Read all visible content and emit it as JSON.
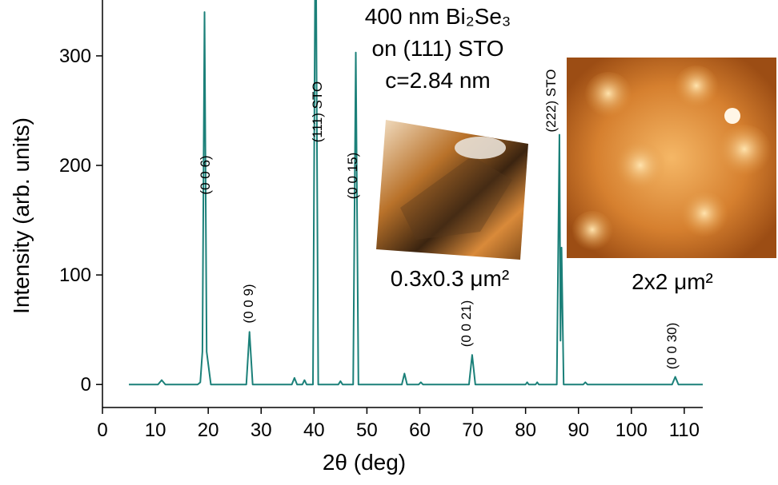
{
  "chart_data": {
    "type": "line",
    "title_lines": [
      "400 nm Bi₂Se₃",
      "on (111) STO",
      "c=2.84 nm"
    ],
    "x_label": "2θ (deg)",
    "y_label": "Intensity (arb. units)",
    "annotations": [
      "(0 0 6)",
      "(0 0 9)",
      "(111) STO",
      "(0 0 15)",
      "(0 0 21)",
      "(222) STO",
      "(0 0 30)"
    ],
    "inset_labels": [
      "0.3x0.3 μm²",
      "2x2 μm²"
    ],
    "xlim": [
      0,
      113.5
    ],
    "xticks": [
      0,
      10,
      20,
      30,
      40,
      50,
      60,
      70,
      80,
      90,
      100,
      110
    ],
    "ylim": [
      -21,
      351
    ],
    "yticks": [
      0,
      100,
      200,
      300
    ],
    "series": [
      {
        "color": "#1b8079",
        "x": [
          5,
          10.5,
          11.2,
          11.9,
          18,
          18.5,
          18.9,
          19.3,
          19.7,
          20.5,
          27.2,
          27.8,
          28.4,
          35.8,
          36.3,
          36.8,
          37.8,
          38.2,
          38.6,
          39.8,
          40.3,
          40.8,
          44.6,
          45,
          45.4,
          47.4,
          47.9,
          48.4,
          56.6,
          57.1,
          57.6,
          59.8,
          60.2,
          60.6,
          69.3,
          69.9,
          70.5,
          80,
          80.3,
          80.6,
          81.9,
          82.2,
          82.5,
          85.9,
          86.4,
          86.6,
          86.8,
          87.2,
          90.9,
          91.3,
          91.7,
          107.7,
          108.3,
          108.9,
          113.5
        ],
        "values": [
          0,
          0,
          4,
          0,
          0,
          2,
          30,
          340,
          30,
          0,
          0,
          48,
          0,
          0,
          6,
          0,
          0,
          4,
          0,
          0,
          450,
          0,
          0,
          3,
          0,
          0,
          303,
          0,
          0,
          10,
          0,
          0,
          2,
          0,
          0,
          27,
          0,
          0,
          2,
          0,
          0,
          2,
          0,
          0,
          228,
          40,
          125,
          0,
          0,
          2,
          0,
          0,
          7,
          0,
          0
        ]
      }
    ]
  }
}
